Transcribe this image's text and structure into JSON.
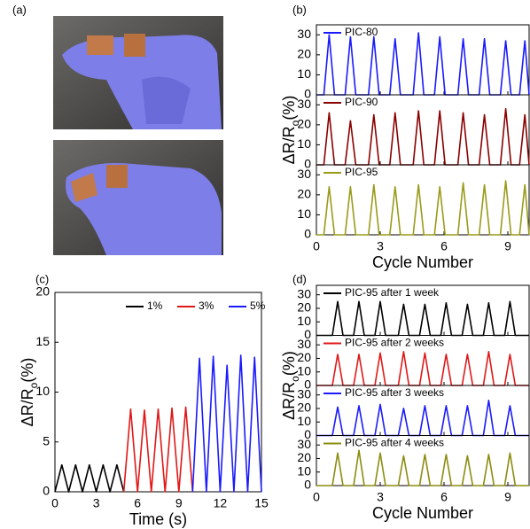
{
  "photo_panel": {
    "label": "(a)"
  },
  "chart_data": [
    {
      "type": "line",
      "label": "(b)",
      "stacked_panels": true,
      "ylabel": [
        "ΔR/R",
        "o",
        "(%)"
      ],
      "xlabel": "Cycle Number",
      "xlim": [
        0,
        10
      ],
      "xticks": [
        0,
        3,
        6,
        9
      ],
      "ylim": [
        0,
        35
      ],
      "yticks": [
        0,
        10,
        20,
        30
      ],
      "x": [
        0,
        0.35,
        0.6,
        0.85,
        1.35,
        1.6,
        1.85,
        2.45,
        2.7,
        2.95,
        3.45,
        3.7,
        3.95,
        4.55,
        4.8,
        5.05,
        5.55,
        5.8,
        6.05,
        6.65,
        6.9,
        7.15,
        7.65,
        7.9,
        8.15,
        8.65,
        8.9,
        9.15,
        9.55,
        9.8,
        10
      ],
      "series": [
        {
          "name": "PIC-80",
          "color": "#1a1aff",
          "values": [
            0,
            0,
            30,
            0,
            0,
            29,
            0,
            0,
            29,
            0,
            0,
            28,
            0,
            0,
            31,
            0,
            0,
            29,
            0,
            0,
            28,
            0,
            0,
            28,
            0,
            0,
            27,
            0,
            0,
            27,
            0
          ]
        },
        {
          "name": "PIC-90",
          "color": "#8b0000",
          "values": [
            0,
            0,
            26,
            0,
            0,
            22,
            0,
            0,
            25,
            0,
            0,
            26,
            0,
            0,
            27,
            0,
            0,
            27,
            0,
            0,
            26,
            0,
            0,
            25,
            0,
            0,
            28,
            0,
            0,
            25,
            0
          ]
        },
        {
          "name": "PIC-95",
          "color": "#9a9a1a",
          "values": [
            0,
            0,
            24,
            0,
            0,
            24,
            0,
            0,
            25,
            0,
            0,
            24,
            0,
            0,
            25,
            0,
            0,
            24,
            0,
            0,
            26,
            0,
            0,
            25,
            0,
            0,
            27,
            0,
            0,
            25,
            0
          ]
        }
      ]
    },
    {
      "type": "line",
      "label": "(c)",
      "stacked_panels": false,
      "legend": "top",
      "ylabel": [
        "ΔR/R",
        "o",
        "(%)"
      ],
      "xlabel": "Time (s)",
      "xlim": [
        0,
        15
      ],
      "xticks": [
        0,
        3,
        6,
        9,
        12,
        15
      ],
      "ylim": [
        0,
        20
      ],
      "yticks": [
        0,
        5,
        10,
        15,
        20
      ],
      "series": [
        {
          "name": "1%",
          "color": "#000000",
          "x": [
            0,
            0.5,
            1,
            1.5,
            2,
            2.5,
            3,
            3.5,
            4,
            4.5,
            5
          ],
          "values": [
            0,
            2.7,
            0,
            2.7,
            0,
            2.7,
            0,
            2.7,
            0,
            2.7,
            0
          ]
        },
        {
          "name": "3%",
          "color": "#e01818",
          "x": [
            5,
            5.5,
            6,
            6.5,
            7,
            7.5,
            8,
            8.5,
            9,
            9.5,
            10
          ],
          "values": [
            0,
            8.3,
            0,
            8.2,
            0,
            8.3,
            0,
            8.4,
            0,
            8.5,
            0
          ]
        },
        {
          "name": "5%",
          "color": "#1a1aff",
          "x": [
            10,
            10.5,
            11,
            11.5,
            12,
            12.5,
            13,
            13.5,
            14,
            14.5,
            15
          ],
          "values": [
            0,
            13.4,
            0,
            13.6,
            0,
            12.7,
            0,
            13.7,
            0,
            13.5,
            0
          ]
        }
      ]
    },
    {
      "type": "line",
      "label": "(d)",
      "stacked_panels": true,
      "ylabel": [
        "ΔR/R",
        "o",
        "(%)"
      ],
      "xlabel": "Cycle Number",
      "xlim": [
        0,
        10
      ],
      "xticks": [
        0,
        3,
        6,
        9
      ],
      "ylim": [
        0,
        37
      ],
      "yticks": [
        0,
        10,
        20,
        30
      ],
      "x": [
        0,
        0.75,
        1,
        1.25,
        1.75,
        2,
        2.25,
        2.75,
        3,
        3.25,
        3.85,
        4.1,
        4.35,
        4.85,
        5.1,
        5.35,
        5.85,
        6.1,
        6.35,
        6.85,
        7.1,
        7.35,
        7.85,
        8.1,
        8.35,
        8.85,
        9.1,
        9.35,
        10
      ],
      "series": [
        {
          "name": "PIC-95 after 1 week",
          "color": "#000000",
          "values": [
            0,
            0,
            25,
            0,
            0,
            25,
            0,
            0,
            25,
            0,
            0,
            23,
            0,
            0,
            23,
            0,
            0,
            24,
            0,
            0,
            23,
            0,
            0,
            24,
            0,
            0,
            25,
            0,
            0
          ]
        },
        {
          "name": "PIC-95 after 2 weeks",
          "color": "#e01818",
          "values": [
            0,
            0,
            23,
            0,
            0,
            23,
            0,
            0,
            24,
            0,
            0,
            25,
            0,
            0,
            24,
            0,
            0,
            23,
            0,
            0,
            23,
            0,
            0,
            25,
            0,
            0,
            23,
            0,
            0
          ]
        },
        {
          "name": "PIC-95 after 3 weeks",
          "color": "#1a1aff",
          "values": [
            0,
            0,
            21,
            0,
            0,
            22,
            0,
            0,
            23,
            0,
            0,
            20,
            0,
            0,
            22,
            0,
            0,
            22,
            0,
            0,
            22,
            0,
            0,
            26,
            0,
            0,
            22,
            0,
            0
          ]
        },
        {
          "name": "PIC-95 after 4 weeks",
          "color": "#8c8c10",
          "values": [
            0,
            0,
            24,
            0,
            0,
            26,
            0,
            0,
            24,
            0,
            0,
            22,
            0,
            0,
            23,
            0,
            0,
            23,
            0,
            0,
            22,
            0,
            0,
            23,
            0,
            0,
            24,
            0,
            0
          ]
        }
      ]
    }
  ]
}
